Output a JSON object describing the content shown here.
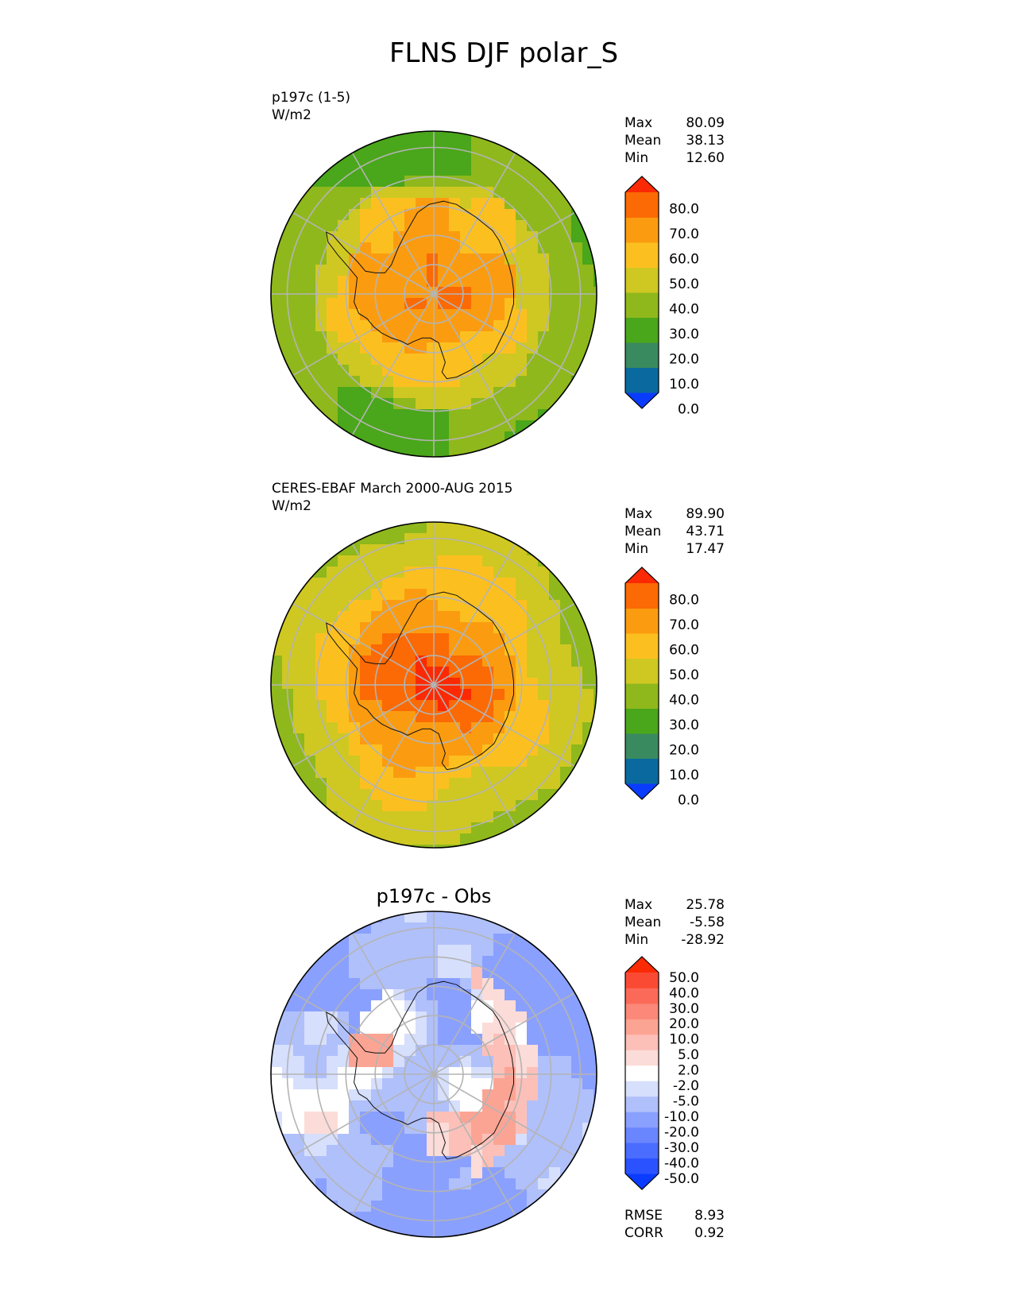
{
  "figure": {
    "title": "FLNS DJF polar_S"
  },
  "chart_data": [
    {
      "type": "heatmap",
      "projection": "south-polar-stereographic",
      "title": "",
      "name_label": "p197c (1-5)",
      "units": "W/m2",
      "stats": [
        {
          "label": "Max",
          "value": "80.09"
        },
        {
          "label": "Mean",
          "value": "38.13"
        },
        {
          "label": "Min",
          "value": "12.60"
        }
      ],
      "colorbar": {
        "levels": [
          0,
          10,
          20,
          30,
          40,
          50,
          60,
          70,
          80
        ],
        "tick_labels": [
          "80.0",
          "70.0",
          "60.0",
          "50.0",
          "40.0",
          "30.0",
          "20.0",
          "10.0",
          "0.0"
        ],
        "colors": [
          "#0a3cff",
          "#0a6aa0",
          "#3a8a60",
          "#4aa61a",
          "#8fb81c",
          "#cfc822",
          "#fbc020",
          "#fb9c10",
          "#fb6a04",
          "#fb2a04"
        ],
        "extend": "both"
      },
      "field_pattern": "model"
    },
    {
      "type": "heatmap",
      "projection": "south-polar-stereographic",
      "title": "",
      "name_label": "CERES-EBAF March 2000-AUG 2015",
      "units": "W/m2",
      "stats": [
        {
          "label": "Max",
          "value": "89.90"
        },
        {
          "label": "Mean",
          "value": "43.71"
        },
        {
          "label": "Min",
          "value": "17.47"
        }
      ],
      "colorbar": {
        "levels": [
          0,
          10,
          20,
          30,
          40,
          50,
          60,
          70,
          80
        ],
        "tick_labels": [
          "80.0",
          "70.0",
          "60.0",
          "50.0",
          "40.0",
          "30.0",
          "20.0",
          "10.0",
          "0.0"
        ],
        "colors": [
          "#0a3cff",
          "#0a6aa0",
          "#3a8a60",
          "#4aa61a",
          "#8fb81c",
          "#cfc822",
          "#fbc020",
          "#fb9c10",
          "#fb6a04",
          "#fb2a04"
        ],
        "extend": "both"
      },
      "field_pattern": "obs"
    },
    {
      "type": "heatmap",
      "projection": "south-polar-stereographic",
      "title": "p197c - Obs",
      "name_label": "",
      "units": "",
      "stats": [
        {
          "label": "Max",
          "value": "25.78"
        },
        {
          "label": "Mean",
          "value": "-5.58"
        },
        {
          "label": "Min",
          "value": "-28.92"
        }
      ],
      "colorbar": {
        "levels": [
          -50,
          -40,
          -30,
          -20,
          -10,
          -5,
          -2,
          2,
          5,
          10,
          20,
          30,
          40,
          50
        ],
        "tick_labels": [
          "50.0",
          "40.0",
          "30.0",
          "20.0",
          "10.0",
          "5.0",
          "2.0",
          "-2.0",
          "-5.0",
          "-10.0",
          "-20.0",
          "-30.0",
          "-40.0",
          "-50.0"
        ],
        "colors": [
          "#0a3cff",
          "#2a52ff",
          "#4a6cff",
          "#6a86ff",
          "#8aa0ff",
          "#b0c0fb",
          "#d6dffc",
          "#ffffff",
          "#fcdcd8",
          "#fcc0b8",
          "#fca494",
          "#fb8878",
          "#fb6a58",
          "#fb4a34",
          "#fb2a04"
        ],
        "extend": "both"
      },
      "field_pattern": "diff",
      "metrics": [
        {
          "label": "RMSE",
          "value": "8.93"
        },
        {
          "label": "CORR",
          "value": "0.92"
        }
      ]
    }
  ]
}
